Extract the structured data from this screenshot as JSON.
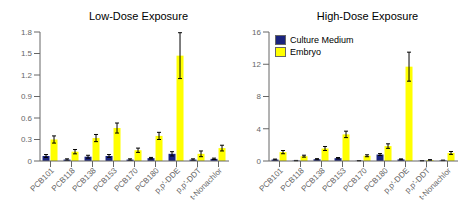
{
  "chart_data": [
    {
      "type": "bar",
      "title": "Low-Dose Exposure",
      "categories": [
        "PCB101",
        "PCB118",
        "PCB138",
        "PCB153",
        "PCB170",
        "PCB180",
        "p,p'-DDE",
        "p,p'-DDT",
        "t-Nonachlor"
      ],
      "series": [
        {
          "color": "#1a237e",
          "values": [
            0.07,
            0.02,
            0.06,
            0.07,
            0.02,
            0.04,
            0.1,
            0.02,
            0.03
          ],
          "error": [
            0.02,
            0.01,
            0.02,
            0.02,
            0.01,
            0.01,
            0.03,
            0.01,
            0.01
          ]
        },
        {
          "color": "#ffff00",
          "values": [
            0.3,
            0.13,
            0.32,
            0.46,
            0.15,
            0.35,
            1.47,
            0.1,
            0.18
          ],
          "error": [
            0.05,
            0.03,
            0.05,
            0.07,
            0.03,
            0.05,
            0.32,
            0.04,
            0.04
          ]
        }
      ],
      "ylim": [
        0,
        1.8
      ],
      "yticks": [
        0,
        0.3,
        0.6,
        0.9,
        1.2,
        1.5,
        1.8
      ]
    },
    {
      "type": "bar",
      "title": "High-Dose Exposure",
      "categories": [
        "PCB101",
        "PCB118",
        "PCB138",
        "PCB153",
        "PCB170",
        "PCB180",
        "p,p'-DDE",
        "p,p'-DDT",
        "t-Nonachlor"
      ],
      "series": [
        {
          "name": "Culture Medium",
          "color": "#1a237e",
          "values": [
            0.18,
            0.05,
            0.22,
            0.35,
            0.04,
            0.8,
            0.2,
            0.04,
            0.08
          ],
          "error": [
            0.06,
            0.02,
            0.07,
            0.08,
            0.02,
            0.12,
            0.06,
            0.02,
            0.03
          ]
        },
        {
          "name": "Embryo",
          "color": "#ffff00",
          "values": [
            1.1,
            0.6,
            1.55,
            3.3,
            0.65,
            1.85,
            11.7,
            0.12,
            1.0
          ],
          "error": [
            0.2,
            0.12,
            0.25,
            0.4,
            0.12,
            0.28,
            1.8,
            0.05,
            0.18
          ]
        }
      ],
      "ylim": [
        0,
        16
      ],
      "yticks": [
        0,
        4,
        8,
        12,
        16
      ],
      "legend": "upper left"
    }
  ]
}
